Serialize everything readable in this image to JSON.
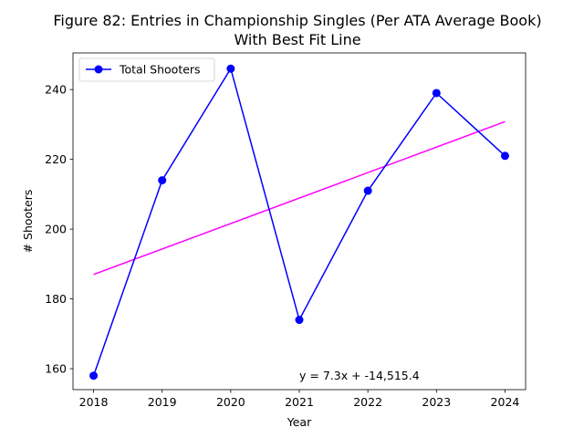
{
  "chart_data": {
    "type": "line",
    "title": "Figure 82: Entries in Championship Singles (Per ATA Average Book)",
    "subtitle": "With Best Fit Line",
    "xlabel": "Year",
    "ylabel": "# Shooters",
    "x": [
      2018,
      2019,
      2020,
      2021,
      2022,
      2023,
      2024
    ],
    "xlim": [
      2017.7,
      2024.3
    ],
    "ylim": [
      154,
      250.5
    ],
    "xticks": [
      2018,
      2019,
      2020,
      2021,
      2022,
      2023,
      2024
    ],
    "yticks": [
      160,
      180,
      200,
      220,
      240
    ],
    "grid": false,
    "legend_position": "top-left",
    "series": [
      {
        "name": "Total Shooters",
        "values": [
          158,
          214,
          246,
          174,
          211,
          239,
          221
        ],
        "color": "#0000ff",
        "marker": "circle"
      }
    ],
    "fit_line": {
      "x": [
        2018,
        2024
      ],
      "y": [
        187.0,
        230.8
      ],
      "color": "#ff00ff"
    },
    "annotation": {
      "text": "y = 7.3x + -14,515.4",
      "x": 2021,
      "y": 158
    }
  }
}
